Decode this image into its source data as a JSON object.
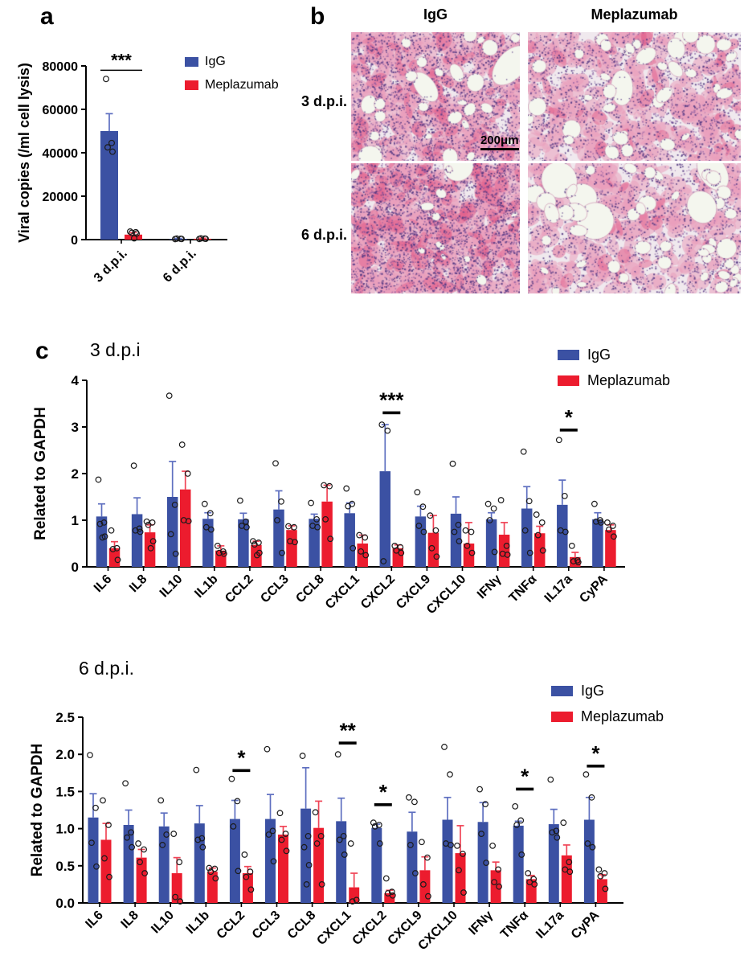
{
  "panels": {
    "a_label": "a",
    "b_label": "b",
    "c_label": "c"
  },
  "legend": {
    "items": [
      {
        "name": "IgG",
        "color": "#3B51A3"
      },
      {
        "name": "Meplazumab",
        "color": "#EC1C2E"
      }
    ]
  },
  "panel_b": {
    "col_headers": [
      "IgG",
      "Meplazumab"
    ],
    "row_labels": [
      "3 d.p.i.",
      "6 d.p.i."
    ],
    "scale_bar": "200μm",
    "images": [
      {
        "row": "3 d.p.i.",
        "treatment": "IgG",
        "appearance": "dense inflammatory infiltrate with scattered alveolar spaces"
      },
      {
        "row": "3 d.p.i.",
        "treatment": "Meplazumab",
        "appearance": "moderate infiltrate with preserved alveolar spaces"
      },
      {
        "row": "6 d.p.i.",
        "treatment": "IgG",
        "appearance": "consolidated tissue, heavy infiltrate, few alveolar spaces"
      },
      {
        "row": "6 d.p.i.",
        "treatment": "Meplazumab",
        "appearance": "open alveolar architecture, mild infiltrate"
      }
    ]
  },
  "chart_data": [
    {
      "id": "panel-a-viral-copies",
      "type": "bar",
      "title": "",
      "ylabel": "Viral copies (/ml cell lysis)",
      "ylim": [
        0,
        80000
      ],
      "yticks": [
        0,
        20000,
        40000,
        60000,
        80000
      ],
      "ytick_labels": [
        "0",
        "20000",
        "40000",
        "60000",
        "80000"
      ],
      "categories": [
        "3 d.p.i.",
        "6 d.p.i."
      ],
      "legend_position": "top-right",
      "grid": false,
      "series": [
        {
          "name": "IgG",
          "color": "#3B51A3",
          "error_color": "#5E6FC0",
          "values": [
            50000,
            300
          ],
          "errors": [
            8000,
            250
          ],
          "points": [
            [
              74000,
              44500,
              42500,
              40500
            ],
            [
              250,
              350,
              450,
              300
            ]
          ]
        },
        {
          "name": "Meplazumab",
          "color": "#EC1C2E",
          "error_color": "#F04557",
          "values": [
            2300,
            400
          ],
          "errors": [
            900,
            250
          ],
          "points": [
            [
              3700,
              3400,
              3100,
              2800,
              600
            ],
            [
              300,
              450,
              550,
              350
            ]
          ]
        }
      ],
      "significance": [
        {
          "category": "3 d.p.i.",
          "label": "***",
          "y": 78000,
          "style": "span"
        }
      ]
    },
    {
      "id": "panel-c-3dpi",
      "type": "bar",
      "title": "3 d.p.i",
      "ylabel": "Related to GAPDH",
      "ylim": [
        0,
        4
      ],
      "yticks": [
        0,
        1,
        2,
        3,
        4
      ],
      "ytick_labels": [
        "0",
        "1",
        "2",
        "3",
        "4"
      ],
      "categories": [
        "IL6",
        "IL8",
        "IL10",
        "IL1b",
        "CCL2",
        "CCL3",
        "CCL8",
        "CXCL1",
        "CXCL2",
        "CXCL9",
        "CXCL10",
        "IFNγ",
        "TNFα",
        "IL17a",
        "CyPA"
      ],
      "legend_position": "top-right",
      "grid": false,
      "series": [
        {
          "name": "IgG",
          "color": "#3B51A3",
          "error_color": "#5E6FC0",
          "values": [
            1.08,
            1.13,
            1.5,
            1.03,
            1.02,
            1.23,
            1.03,
            1.15,
            2.05,
            1.08,
            1.14,
            1.02,
            1.25,
            1.33,
            1.02
          ],
          "errors": [
            0.27,
            0.35,
            0.76,
            0.13,
            0.13,
            0.4,
            0.1,
            0.22,
            1.0,
            0.22,
            0.36,
            0.14,
            0.47,
            0.53,
            0.14
          ],
          "points": [
            [
              1.87,
              0.95,
              0.92,
              0.65,
              0.63
            ],
            [
              2.17,
              0.82,
              0.78,
              0.75
            ],
            [
              3.67,
              1.33,
              0.7,
              0.28
            ],
            [
              1.35,
              1.15,
              0.85,
              0.8
            ],
            [
              1.42,
              0.97,
              0.88,
              0.85
            ],
            [
              2.22,
              1.4,
              1.0,
              0.3
            ],
            [
              1.37,
              1.02,
              0.88,
              0.85
            ],
            [
              1.68,
              1.35,
              1.3,
              0.4
            ],
            [
              3.05,
              2.92,
              0.12
            ],
            [
              1.6,
              1.29,
              0.88,
              0.75
            ],
            [
              2.21,
              0.9,
              0.75,
              0.55
            ],
            [
              1.35,
              1.25,
              1.0,
              0.32
            ],
            [
              2.47,
              1.41,
              0.78,
              0.3
            ],
            [
              2.72,
              1.52,
              0.78,
              0.75
            ],
            [
              1.35,
              1.0,
              0.97,
              0.95
            ]
          ]
        },
        {
          "name": "Meplazumab",
          "color": "#EC1C2E",
          "error_color": "#F04557",
          "values": [
            0.4,
            0.74,
            1.66,
            0.35,
            0.47,
            0.79,
            1.4,
            0.5,
            0.4,
            0.73,
            0.5,
            0.69,
            0.72,
            0.21,
            0.79
          ],
          "errors": [
            0.14,
            0.16,
            0.39,
            0.1,
            0.08,
            0.09,
            0.35,
            0.18,
            0.07,
            0.37,
            0.45,
            0.26,
            0.15,
            0.1,
            0.11
          ],
          "points": [
            [
              0.78,
              0.4,
              0.38,
              0.15
            ],
            [
              0.97,
              0.95,
              0.9,
              0.55,
              0.4
            ],
            [
              2.62,
              2.0,
              1.0,
              0.98
            ],
            [
              0.45,
              0.33,
              0.3,
              0.28
            ],
            [
              0.55,
              0.52,
              0.48,
              0.3,
              0.25
            ],
            [
              0.87,
              0.85,
              0.55,
              0.53
            ],
            [
              1.75,
              1.73,
              1.02,
              0.6
            ],
            [
              0.68,
              0.63,
              0.33,
              0.25
            ],
            [
              0.45,
              0.42,
              0.35,
              0.3
            ],
            [
              1.1,
              0.78,
              0.4,
              0.22
            ],
            [
              0.78,
              0.75,
              0.45,
              0.3
            ],
            [
              1.43,
              0.45,
              0.28,
              0.26
            ],
            [
              1.12,
              0.95,
              0.68,
              0.35
            ],
            [
              0.45,
              0.14,
              0.12,
              0.1
            ],
            [
              0.95,
              0.88,
              0.8,
              0.65
            ]
          ]
        }
      ],
      "significance": [
        {
          "category": "CXCL2",
          "label": "***",
          "y": 3.3,
          "style": "dash"
        },
        {
          "category": "IL17a",
          "label": "*",
          "y": 2.93,
          "style": "dash"
        }
      ]
    },
    {
      "id": "panel-c-6dpi",
      "type": "bar",
      "title": "6 d.p.i.",
      "ylabel": "Related to GAPDH",
      "ylim": [
        0,
        2.5
      ],
      "yticks": [
        0,
        0.5,
        1,
        1.5,
        2,
        2.5
      ],
      "ytick_labels": [
        "0.0",
        "0.5",
        "1.0",
        "1.5",
        "2.0",
        "2.5"
      ],
      "categories": [
        "IL6",
        "IL8",
        "IL10",
        "IL1b",
        "CCL2",
        "CCL3",
        "CCL8",
        "CXCL1",
        "CXCL2",
        "CXCL9",
        "CXCL10",
        "IFNγ",
        "TNFα",
        "IL17a",
        "CyPA"
      ],
      "legend_position": "top-right",
      "grid": false,
      "series": [
        {
          "name": "IgG",
          "color": "#3B51A3",
          "error_color": "#5E6FC0",
          "values": [
            1.15,
            1.05,
            1.03,
            1.07,
            1.13,
            1.13,
            1.27,
            1.1,
            1.01,
            0.96,
            1.12,
            1.09,
            1.04,
            1.06,
            1.12
          ],
          "errors": [
            0.32,
            0.2,
            0.18,
            0.24,
            0.25,
            0.33,
            0.55,
            0.31,
            0.05,
            0.26,
            0.3,
            0.26,
            0.06,
            0.2,
            0.3
          ],
          "points": [
            [
              1.99,
              1.28,
              0.81,
              0.49
            ],
            [
              1.61,
              0.95,
              0.88,
              0.75
            ],
            [
              1.38,
              0.92,
              0.78
            ],
            [
              1.79,
              0.87,
              0.85,
              0.75
            ],
            [
              1.67,
              1.37,
              1.03,
              0.43
            ],
            [
              2.07,
              0.97,
              0.92,
              0.56
            ],
            [
              1.98,
              0.9,
              0.75,
              0.51,
              0.25
            ],
            [
              2.0,
              0.9,
              0.85,
              0.65
            ],
            [
              1.08,
              1.05,
              1.03,
              0.8
            ],
            [
              1.42,
              1.36,
              0.78,
              0.4
            ],
            [
              2.1,
              1.73,
              0.8,
              0.78
            ],
            [
              1.53,
              1.33,
              0.93,
              0.54
            ],
            [
              1.3,
              1.11,
              1.05,
              0.65
            ],
            [
              1.66,
              0.97,
              0.95,
              0.88
            ],
            [
              1.73,
              1.42,
              0.8,
              0.75
            ]
          ]
        },
        {
          "name": "Meplazumab",
          "color": "#EC1C2E",
          "error_color": "#F04557",
          "values": [
            0.85,
            0.61,
            0.4,
            0.42,
            0.4,
            0.92,
            1.01,
            0.21,
            0.13,
            0.44,
            0.67,
            0.44,
            0.32,
            0.64,
            0.32
          ],
          "errors": [
            0.22,
            0.11,
            0.21,
            0.05,
            0.09,
            0.11,
            0.36,
            0.19,
            0.04,
            0.18,
            0.37,
            0.11,
            0.05,
            0.14,
            0.06
          ],
          "points": [
            [
              1.38,
              1.05,
              0.6,
              0.35
            ],
            [
              0.8,
              0.72,
              0.55,
              0.4
            ],
            [
              0.93,
              0.55,
              0.08,
              0.02
            ],
            [
              0.47,
              0.46,
              0.42,
              0.33
            ],
            [
              0.65,
              0.42,
              0.35,
              0.18
            ],
            [
              1.21,
              0.93,
              0.85,
              0.7
            ],
            [
              1.22,
              0.9,
              0.8,
              0.25
            ],
            [
              0.8,
              0.04,
              0.02
            ],
            [
              0.33,
              0.15,
              0.13,
              0.1
            ],
            [
              0.82,
              0.61,
              0.25,
              0.09
            ],
            [
              0.77,
              0.66,
              0.44,
              0.14
            ],
            [
              0.77,
              0.45,
              0.28,
              0.22
            ],
            [
              0.4,
              0.32,
              0.28,
              0.25
            ],
            [
              1.08,
              0.55,
              0.45,
              0.42
            ],
            [
              0.45,
              0.4,
              0.36,
              0.19
            ]
          ]
        }
      ],
      "significance": [
        {
          "category": "CCL2",
          "label": "*",
          "y": 1.78,
          "style": "dash"
        },
        {
          "category": "CXCL1",
          "label": "**",
          "y": 2.15,
          "style": "dash"
        },
        {
          "category": "CXCL2",
          "label": "*",
          "y": 1.32,
          "style": "dash"
        },
        {
          "category": "TNFα",
          "label": "*",
          "y": 1.53,
          "style": "dash"
        },
        {
          "category": "CyPA",
          "label": "*",
          "y": 1.84,
          "style": "dash"
        }
      ]
    }
  ]
}
